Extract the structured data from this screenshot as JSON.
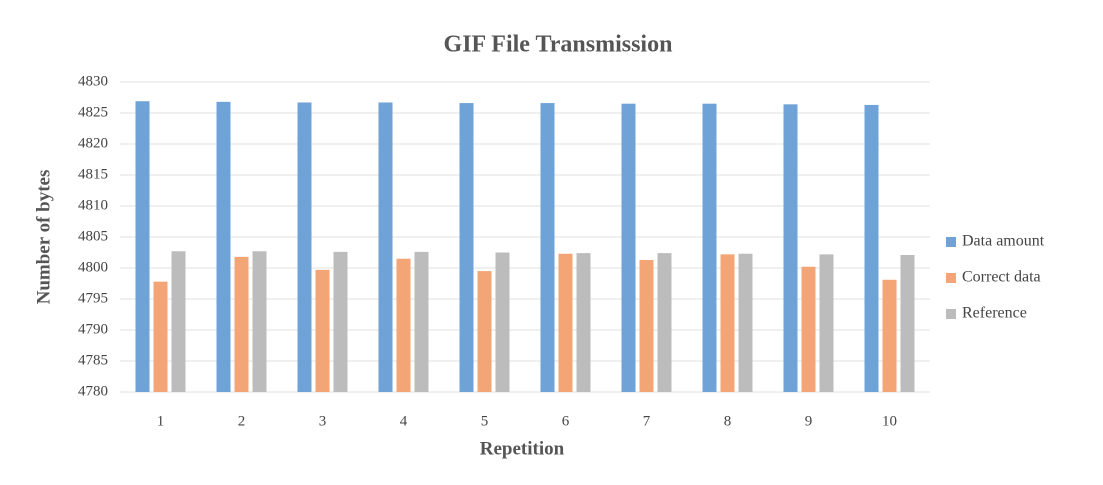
{
  "chart_data": {
    "type": "bar",
    "title": "GIF File Transmission",
    "x_label": "Repetition",
    "y_label": "Number of bytes",
    "categories": [
      "1",
      "2",
      "3",
      "4",
      "5",
      "6",
      "7",
      "8",
      "9",
      "10"
    ],
    "series": [
      {
        "name": "Data amount",
        "color": "#6fa3d8",
        "values": [
          4826.9,
          4826.8,
          4826.7,
          4826.7,
          4826.6,
          4826.6,
          4826.5,
          4826.5,
          4826.4,
          4826.3
        ]
      },
      {
        "name": "Correct data",
        "color": "#f3a576",
        "values": [
          4797.8,
          4801.8,
          4799.7,
          4801.5,
          4799.5,
          4802.3,
          4801.3,
          4802.2,
          4800.2,
          4798.1
        ]
      },
      {
        "name": "Reference",
        "color": "#bcbcbc",
        "values": [
          4802.7,
          4802.7,
          4802.6,
          4802.6,
          4802.5,
          4802.4,
          4802.4,
          4802.3,
          4802.2,
          4802.1
        ]
      }
    ],
    "ylim": [
      4780,
      4830
    ],
    "yticks": [
      4780,
      4785,
      4790,
      4795,
      4800,
      4805,
      4810,
      4815,
      4820,
      4825,
      4830
    ],
    "grid": true,
    "legend": "right"
  }
}
